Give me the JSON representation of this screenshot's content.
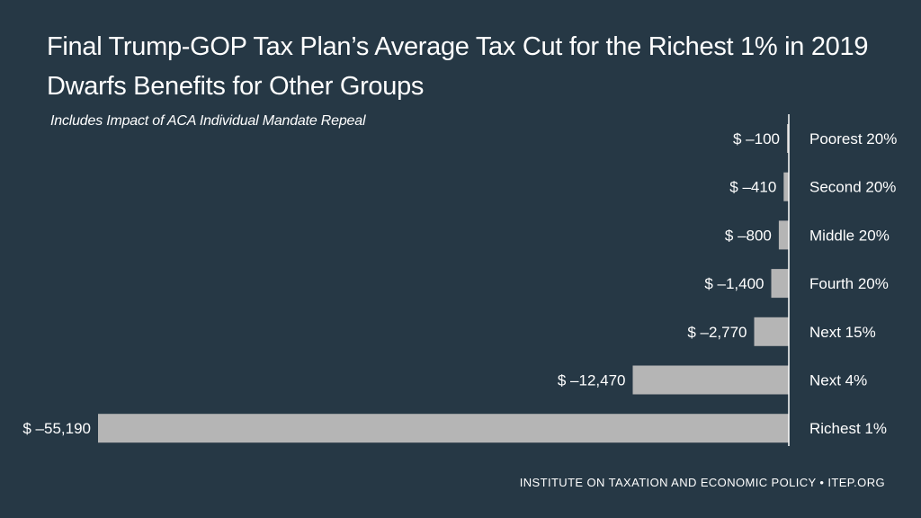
{
  "title_line1": "Final Trump-GOP Tax Plan’s Average Tax Cut for the Richest 1% in 2019",
  "title_line2": "Dwarfs Benefits for Other Groups",
  "subtitle": "Includes Impact of ACA Individual Mandate Repeal",
  "source": "INSTITUTE ON TAXATION AND ECONOMIC POLICY • ITEP.ORG",
  "colors": {
    "background": "#263845",
    "bar": "#b5b5b5",
    "text": "#ffffff",
    "axis": "#ffffff"
  },
  "chart_data": {
    "type": "bar",
    "orientation": "horizontal",
    "categories": [
      "Poorest 20%",
      "Second 20%",
      "Middle 20%",
      "Fourth 20%",
      "Next 15%",
      "Next 4%",
      "Richest 1%"
    ],
    "values": [
      -100,
      -410,
      -800,
      -1400,
      -2770,
      -12470,
      -55190
    ],
    "data_labels": [
      "$ –100",
      "$ –410",
      "$ –800",
      "$ –1,400",
      "$ –2,770",
      "$ –12,470",
      "$ –55,190"
    ],
    "xlim": [
      -55190,
      0
    ],
    "grid": false,
    "legend": "none"
  }
}
